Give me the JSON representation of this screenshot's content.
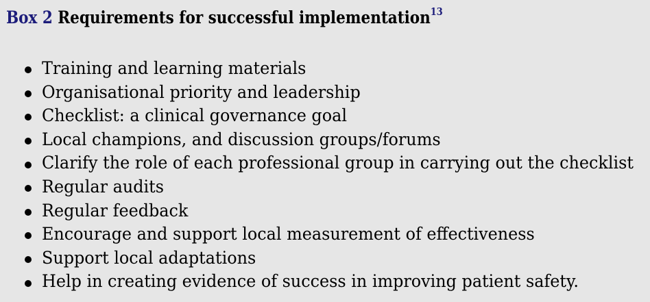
{
  "box": {
    "label": "Box 2",
    "title": "Requirements for successful implementation",
    "reference": "13",
    "items": [
      "Training and learning materials",
      "Organisational priority and leadership",
      "Checklist: a clinical governance goal",
      "Local champions, and discussion groups/forums",
      "Clarify the role of each professional group in carrying out the checklist",
      "Regular audits",
      "Regular feedback",
      "Encourage and support local measurement of effectiveness",
      "Support local adaptations",
      "Help in creating evidence of success in improving patient safety."
    ]
  }
}
